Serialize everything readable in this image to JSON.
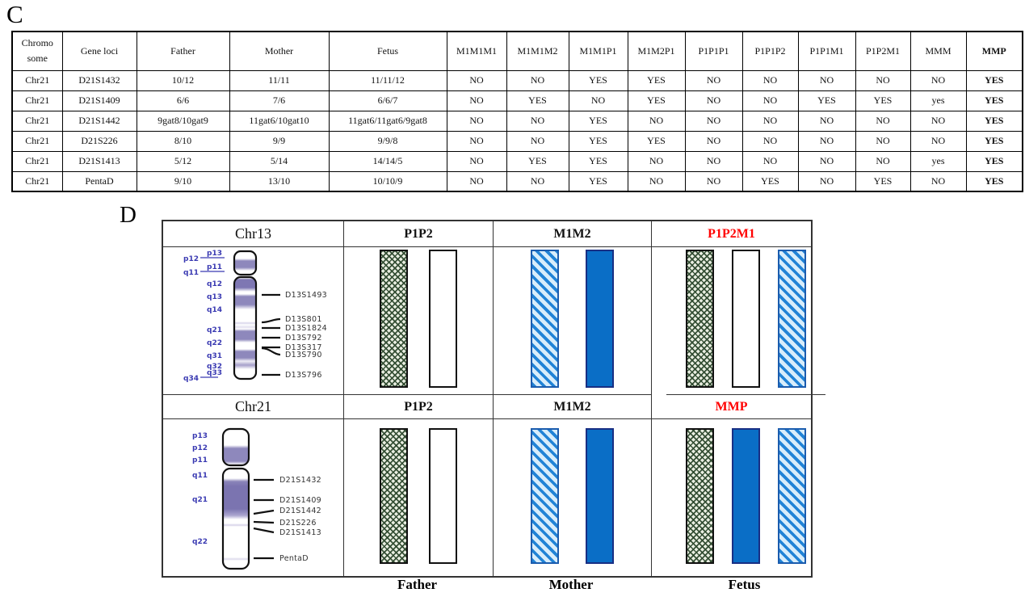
{
  "figure": {
    "panel_c_label": "C",
    "panel_d_label": "D"
  },
  "table": {
    "col0_lines": [
      "Chromo",
      "some"
    ],
    "columns": [
      "Chromosome",
      "Gene loci",
      "Father",
      "Mother",
      "Fetus",
      "M1M1M1",
      "M1M1M2",
      "M1M1P1",
      "M1M2P1",
      "P1P1P1",
      "P1P1P2",
      "P1P1M1",
      "P1P2M1",
      "MMM",
      "MMP"
    ],
    "rows": [
      [
        "Chr21",
        "D21S1432",
        "10/12",
        "11/11",
        "11/11/12",
        "NO",
        "NO",
        "YES",
        "YES",
        "NO",
        "NO",
        "NO",
        "NO",
        "NO",
        "YES"
      ],
      [
        "Chr21",
        "D21S1409",
        "6/6",
        "7/6",
        "6/6/7",
        "NO",
        "YES",
        "NO",
        "YES",
        "NO",
        "NO",
        "YES",
        "YES",
        "yes",
        "YES"
      ],
      [
        "Chr21",
        "D21S1442",
        "9gat8/10gat9",
        "11gat6/10gat10",
        "11gat6/11gat6/9gat8",
        "NO",
        "NO",
        "YES",
        "NO",
        "NO",
        "NO",
        "NO",
        "NO",
        "NO",
        "YES"
      ],
      [
        "Chr21",
        "D21S226",
        "8/10",
        "9/9",
        "9/9/8",
        "NO",
        "NO",
        "YES",
        "YES",
        "NO",
        "NO",
        "NO",
        "NO",
        "NO",
        "YES"
      ],
      [
        "Chr21",
        "D21S1413",
        "5/12",
        "5/14",
        "14/14/5",
        "NO",
        "YES",
        "YES",
        "NO",
        "NO",
        "NO",
        "NO",
        "NO",
        "yes",
        "YES"
      ],
      [
        "Chr21",
        "PentaD",
        "9/10",
        "13/10",
        "10/10/9",
        "NO",
        "NO",
        "YES",
        "NO",
        "NO",
        "YES",
        "NO",
        "YES",
        "NO",
        "YES"
      ]
    ]
  },
  "panelD": {
    "rows": [
      {
        "chromosome": "Chr13",
        "band_labels": [
          "p13",
          "p12",
          "p11",
          "q11",
          "q12",
          "q13",
          "q14",
          "q21",
          "q22",
          "q31",
          "q32",
          "q33",
          "q34"
        ],
        "marker_labels": [
          "D13S1493",
          "D13S801",
          "D13S1824",
          "D13S792",
          "D13S317",
          "D13S790",
          "D13S796"
        ],
        "headers": {
          "col2": "P1P2",
          "col3": "M1M2",
          "col4": "P1P2M1"
        }
      },
      {
        "chromosome": "Chr21",
        "band_labels": [
          "p13",
          "p12",
          "p11",
          "q11",
          "q21",
          "q22"
        ],
        "marker_labels": [
          "D21S1432",
          "D21S1409",
          "D21S1442",
          "D21S226",
          "D21S1413",
          "PentaD"
        ],
        "headers": {
          "col2": "P1P2",
          "col3": "M1M2",
          "col4": "MMP"
        }
      }
    ],
    "footer_labels": [
      "Father",
      "Mother",
      "Fetus"
    ],
    "colors": {
      "highlight_red": "#ff0000",
      "band_label_blue": "#3a3ab2",
      "ideogram_purple": "#8e88bc",
      "paternal_hatch_green": "#2f4a2f",
      "maternal_hatch_blue": "#2183d6",
      "maternal_solid_blue": "#0a6ec6",
      "grid_line": "#333333"
    }
  }
}
